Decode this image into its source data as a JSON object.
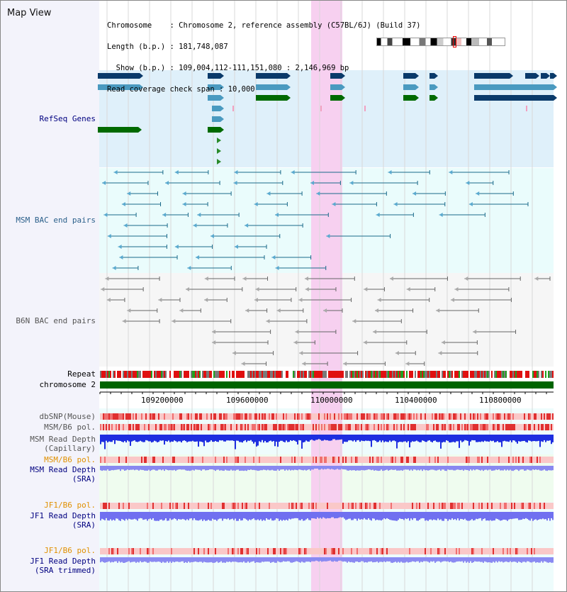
{
  "header": {
    "title": "Map View",
    "info_lines": [
      "Chromosome    : Chromosome 2, reference assembly (C57BL/6J) (Build 37)",
      "Length (b.p.) : 181,748,087",
      "  Show (b.p.) : 109,004,112-111,151,080 : 2,146,969 bp",
      "Read coverage check span : 10,000"
    ]
  },
  "tracks": {
    "refseq": "RefSeq Genes",
    "msm_bac": "MSM BAC end pairs",
    "b6n_bac": "B6N BAC end pairs",
    "repeat": "Repeat",
    "chromosome": "chromosome 2",
    "dbsnp": "dbSNP(Mouse)",
    "msm_b6_pol": "MSM/B6 pol.",
    "msm_depth_cap_1": "MSM Read Depth",
    "msm_depth_cap_2": "(Capillary)",
    "msm_b6_pol_sra": "MSM/B6 pol.",
    "msm_depth_sra_1": "MSM Read Depth",
    "msm_depth_sra_2": "(SRA)",
    "jf1_pol": "JF1/B6 pol.",
    "jf1_depth_1": "JF1 Read Depth",
    "jf1_depth_2": "(SRA)",
    "jf1_pol_trim": "JF1/B6 pol.",
    "jf1_trim_1": "JF1 Read Depth",
    "jf1_trim_2": "(SRA trimmed)"
  },
  "ruler": {
    "ticks": [
      "109200000",
      "109600000",
      "110000000",
      "110400000",
      "110800000"
    ]
  },
  "colors": {
    "highlight": "#f7d0f0",
    "refseq_bg": "#dff0fa",
    "bac_bg": "#e9fbfb",
    "gene_dark": "#0a3a6a",
    "gene_mid": "#4a9ac0",
    "gene_green": "#006a00",
    "chromosome": "#006400",
    "depth_blue": "#2030e0",
    "depth_light": "#8080f0"
  }
}
